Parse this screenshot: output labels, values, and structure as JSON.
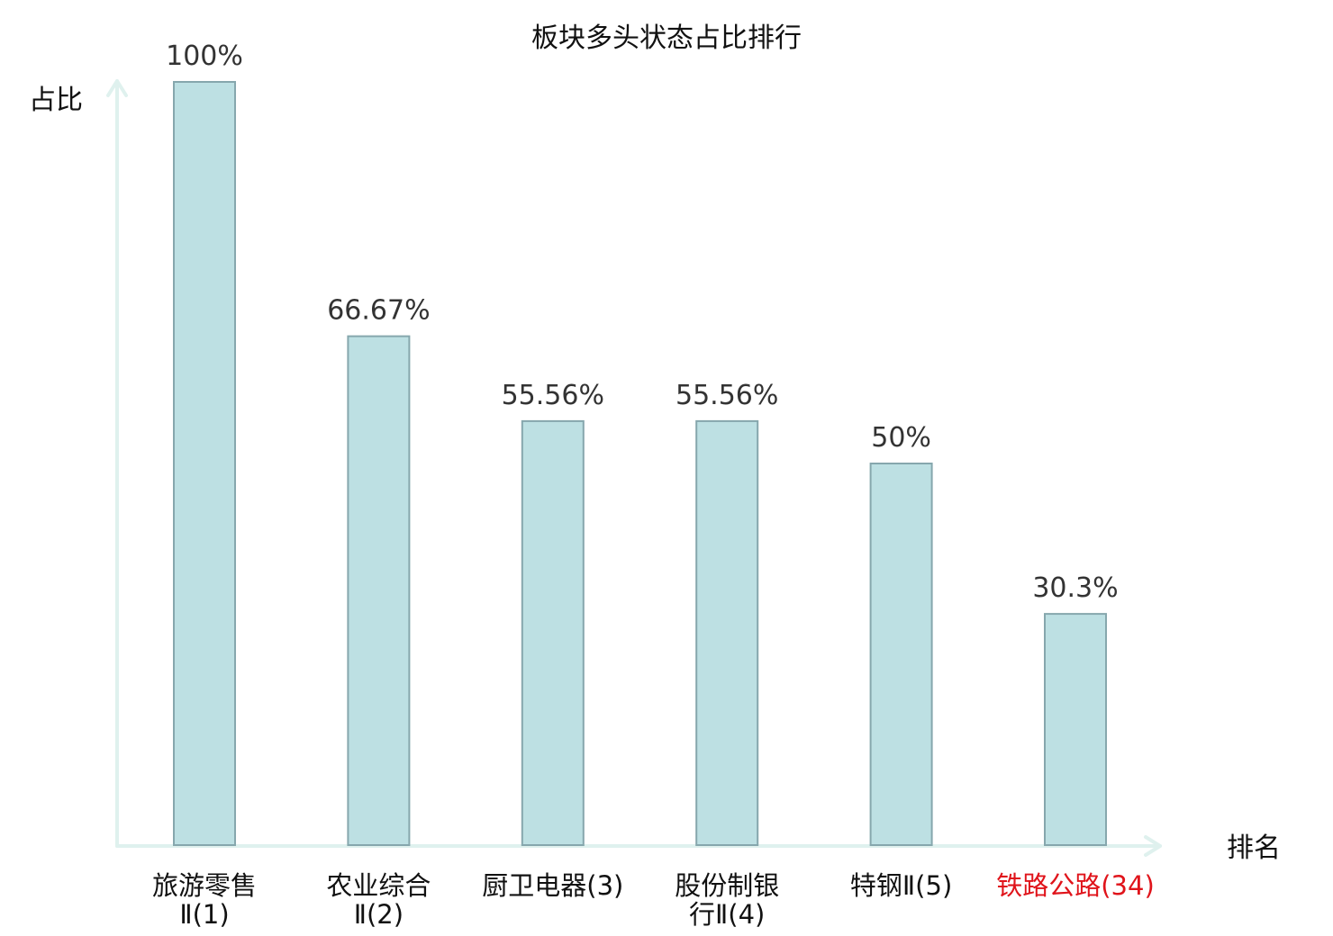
{
  "chart_data": {
    "type": "bar",
    "title": "板块多头状态占比排行",
    "ylabel": "占比",
    "xlabel": "排名",
    "ylim": [
      0,
      100
    ],
    "unit": "%",
    "grid": false,
    "categories": [
      {
        "name_lines": [
          "旅游零售",
          "Ⅱ(1)"
        ],
        "highlight": false
      },
      {
        "name_lines": [
          "农业综合",
          "Ⅱ(2)"
        ],
        "highlight": false
      },
      {
        "name_lines": [
          "厨卫电器(3)"
        ],
        "highlight": false
      },
      {
        "name_lines": [
          "股份制银",
          "行Ⅱ(4)"
        ],
        "highlight": false
      },
      {
        "name_lines": [
          "特钢Ⅱ(5)"
        ],
        "highlight": false
      },
      {
        "name_lines": [
          "铁路公路(34)"
        ],
        "highlight": true
      }
    ],
    "values": [
      100,
      66.67,
      55.56,
      55.56,
      50,
      30.3
    ],
    "value_labels": [
      "100%",
      "66.67%",
      "55.56%",
      "55.56%",
      "50%",
      "30.3%"
    ]
  },
  "colors": {
    "bar_fill": "#bde0e3",
    "bar_stroke": "#86a7ad",
    "axis": "#dff1ee",
    "text": "#111111",
    "value_text": "#333333",
    "highlight": "#e0141b"
  }
}
